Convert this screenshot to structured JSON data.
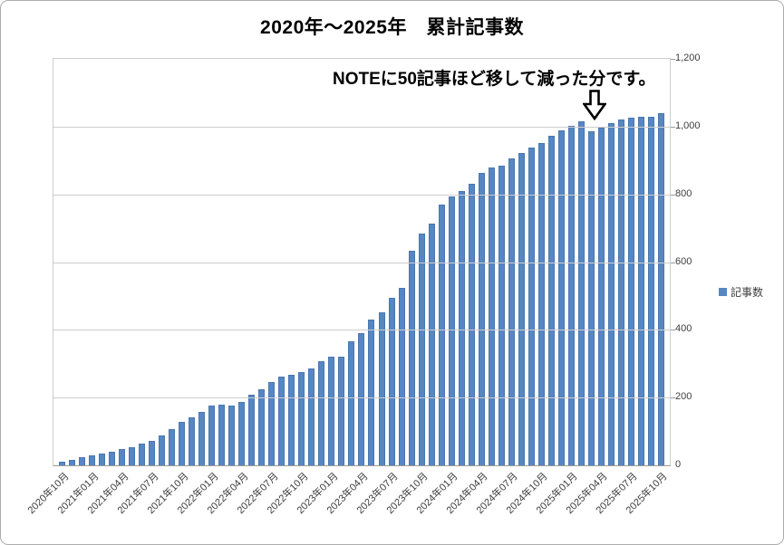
{
  "title": "2020年～2025年　累計記事数",
  "annotation": {
    "text": "NOTEに50記事ほど移して減った分です。",
    "arrow_icon": "hollow-down-arrow",
    "arrow_points_to": "2025年03月"
  },
  "legend": {
    "label": "記事数",
    "marker_color": "#5687c4",
    "position": "right"
  },
  "chart_data": {
    "type": "bar",
    "title": "2020年～2025年　累計記事数",
    "series_name": "記事数",
    "xlabel": "",
    "ylabel": "",
    "ylim": [
      0,
      1200
    ],
    "grid": true,
    "y_ticks": [
      {
        "value": 0,
        "label": "0"
      },
      {
        "value": 200,
        "label": "200"
      },
      {
        "value": 400,
        "label": "400"
      },
      {
        "value": 600,
        "label": "600"
      },
      {
        "value": 800,
        "label": "800"
      },
      {
        "value": 1000,
        "label": "1,000"
      },
      {
        "value": 1200,
        "label": "1,200"
      }
    ],
    "x_tick_every": 3,
    "bar_color": "#5687c4",
    "categories": [
      "2020年10月",
      "2020年11月",
      "2020年12月",
      "2021年01月",
      "2021年02月",
      "2021年03月",
      "2021年04月",
      "2021年05月",
      "2021年06月",
      "2021年07月",
      "2021年08月",
      "2021年09月",
      "2021年10月",
      "2021年11月",
      "2021年12月",
      "2022年01月",
      "2022年02月",
      "2022年03月",
      "2022年04月",
      "2022年05月",
      "2022年06月",
      "2022年07月",
      "2022年08月",
      "2022年09月",
      "2022年10月",
      "2022年11月",
      "2022年12月",
      "2023年01月",
      "2023年02月",
      "2023年03月",
      "2023年04月",
      "2023年05月",
      "2023年06月",
      "2023年07月",
      "2023年08月",
      "2023年09月",
      "2023年10月",
      "2023年11月",
      "2023年12月",
      "2024年01月",
      "2024年02月",
      "2024年03月",
      "2024年04月",
      "2024年05月",
      "2024年06月",
      "2024年07月",
      "2024年08月",
      "2024年09月",
      "2024年10月",
      "2024年11月",
      "2024年12月",
      "2025年01月",
      "2025年02月",
      "2025年03月",
      "2025年04月",
      "2025年05月",
      "2025年06月",
      "2025年07月",
      "2025年08月",
      "2025年09月",
      "2025年10月"
    ],
    "values": [
      10,
      16,
      23,
      30,
      35,
      41,
      48,
      54,
      63,
      72,
      88,
      106,
      128,
      142,
      158,
      176,
      178,
      177,
      188,
      209,
      225,
      245,
      262,
      266,
      274,
      287,
      307,
      320,
      322,
      367,
      389,
      429,
      452,
      494,
      523,
      634,
      683,
      714,
      771,
      794,
      809,
      831,
      863,
      878,
      885,
      907,
      921,
      939,
      951,
      972,
      989,
      1003,
      1016,
      987,
      998,
      1010,
      1022,
      1026,
      1029,
      1030,
      1039
    ]
  }
}
